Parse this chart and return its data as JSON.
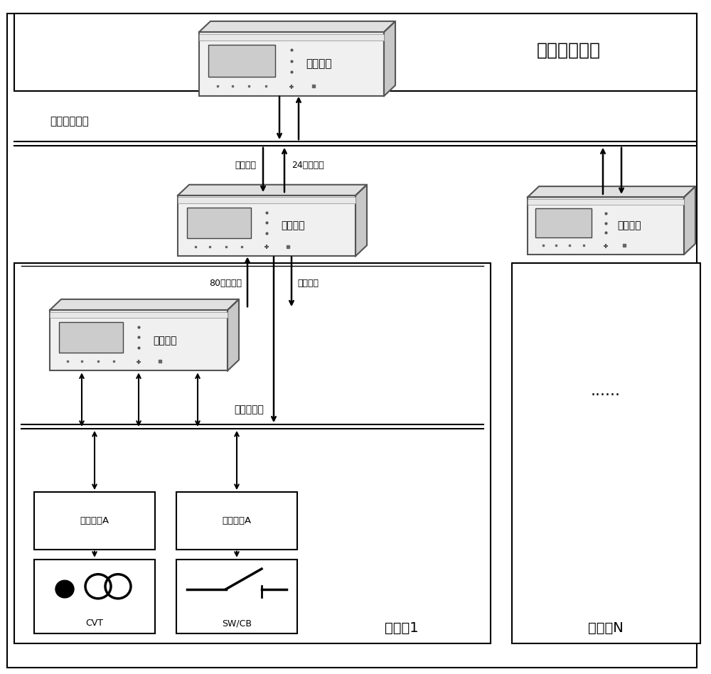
{
  "fig_width": 10.0,
  "fig_height": 9.48,
  "bg_color": "#ffffff",
  "line_color": "#000000",
  "title_label": "保护控制中心",
  "station_inter_label": "站间通信网络",
  "substation1_label": "变电站1",
  "substationN_label": "变电站N",
  "wide_prot_label": "广域保护",
  "station1_prot_label": "站域保护",
  "stationN_prot_label": "站域保护",
  "local_prot_label": "就地保护",
  "merge_unit_label": "合并单元A",
  "smart_term_label": "智能终端A",
  "cvt_label": "CVT",
  "swcb_label": "SW/CB",
  "process_net_label": "过程层网络",
  "label_80pt": "80点采样値",
  "label_trip": "跳闸命令",
  "label_sync": "同步命令",
  "label_24pt": "24点采样値",
  "ellipsis": "......"
}
